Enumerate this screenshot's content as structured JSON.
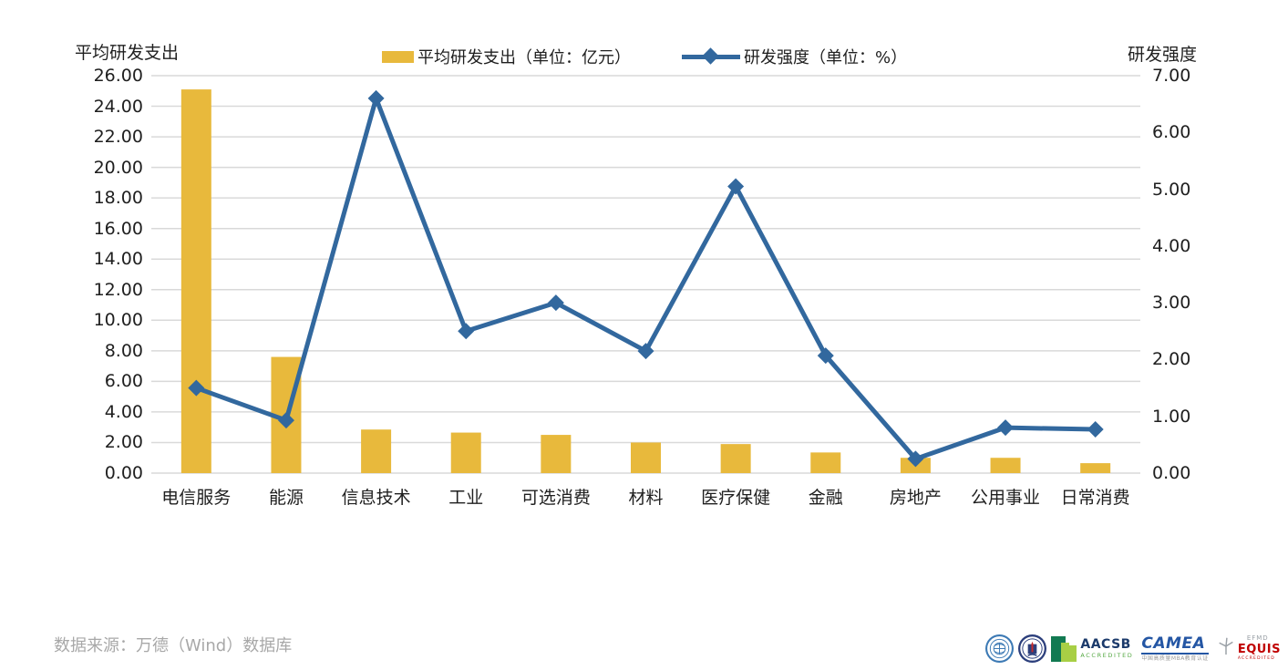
{
  "chart_data": {
    "type": "bar+line",
    "categories": [
      "电信服务",
      "能源",
      "信息技术",
      "工业",
      "可选消费",
      "材料",
      "医疗保健",
      "金融",
      "房地产",
      "公用事业",
      "日常消费"
    ],
    "series": [
      {
        "name": "平均研发支出（单位：亿元）",
        "chart_type": "bar",
        "axis": "left",
        "color": "#E8B93C",
        "values": [
          25.1,
          7.6,
          2.85,
          2.65,
          2.5,
          2.0,
          1.9,
          1.35,
          1.0,
          1.0,
          0.65
        ]
      },
      {
        "name": "研发强度（单位：%）",
        "chart_type": "line",
        "axis": "right",
        "color": "#32689E",
        "values": [
          1.5,
          0.93,
          6.6,
          2.5,
          3.0,
          2.15,
          5.05,
          2.07,
          0.25,
          0.8,
          0.77
        ]
      }
    ],
    "left_axis": {
      "title": "平均研发支出",
      "min": 0,
      "max": 26,
      "step": 2,
      "tick_labels": [
        "26.00",
        "24.00",
        "22.00",
        "20.00",
        "18.00",
        "16.00",
        "14.00",
        "12.00",
        "10.00",
        "8.00",
        "6.00",
        "4.00",
        "2.00",
        "0.00"
      ]
    },
    "right_axis": {
      "title": "研发强度",
      "min": 0,
      "max": 7,
      "step": 1,
      "tick_labels": [
        "7.00",
        "6.00",
        "5.00",
        "4.00",
        "3.00",
        "2.00",
        "1.00",
        "0.00"
      ]
    },
    "grid": true,
    "legend_position": "top-center"
  },
  "colors": {
    "bar": "#E8B93C",
    "line": "#32689E",
    "grid": "#D9D9D9",
    "axis_text": "#1f1f1f",
    "footer_text": "#A8A8A8"
  },
  "footer": {
    "source": "数据来源：万德（Wind）数据库",
    "logos": {
      "aacsb": {
        "line1": "AACSB",
        "line2": "ACCREDITED"
      },
      "camea": {
        "line1": "CAMEA",
        "line2": "中国高质量MBA教育认证"
      },
      "equis": {
        "line1": "EFMD",
        "line2": "EQUIS",
        "line3": "ACCREDITED"
      }
    }
  }
}
